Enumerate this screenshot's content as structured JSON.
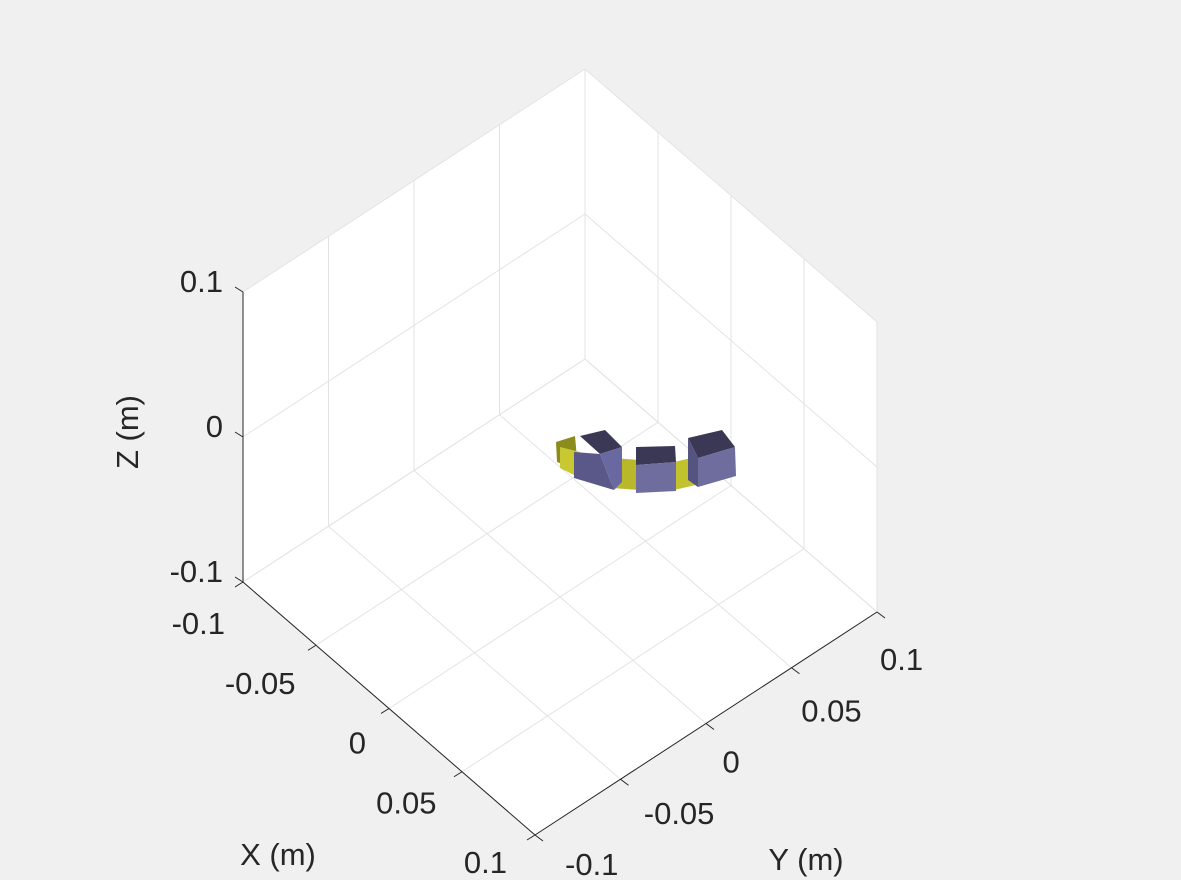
{
  "chart_data": {
    "type": "3d",
    "xlabel": "X (m)",
    "ylabel": "Y (m)",
    "zlabel": "Z (m)",
    "xlim": [
      -0.1,
      0.1
    ],
    "xticks": [
      -0.1,
      -0.05,
      0,
      0.05,
      0.1
    ],
    "ylim": [
      -0.1,
      0.1
    ],
    "yticks": [
      -0.1,
      -0.05,
      0,
      0.05,
      0.1
    ],
    "zlim": [
      -0.1,
      0.1
    ],
    "zticks": [
      -0.1,
      0,
      0.1
    ],
    "grid": true
  }
}
